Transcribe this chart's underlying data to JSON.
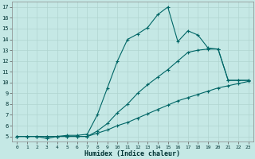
{
  "xlabel": "Humidex (Indice chaleur)",
  "bg_color": "#c5e8e5",
  "line_color": "#006666",
  "grid_color": "#b0d5d0",
  "xlim": [
    -0.5,
    23.5
  ],
  "ylim": [
    4.5,
    17.5
  ],
  "xticks": [
    0,
    1,
    2,
    3,
    4,
    5,
    6,
    7,
    8,
    9,
    10,
    11,
    12,
    13,
    14,
    15,
    16,
    17,
    18,
    19,
    20,
    21,
    22,
    23
  ],
  "yticks": [
    5,
    6,
    7,
    8,
    9,
    10,
    11,
    12,
    13,
    14,
    15,
    16,
    17
  ],
  "line1_x": [
    0,
    1,
    2,
    3,
    4,
    5,
    6,
    7,
    8,
    9,
    10,
    11,
    12,
    13,
    14,
    15,
    16,
    17,
    18,
    19,
    20,
    21,
    22,
    23
  ],
  "line1_y": [
    5,
    5,
    5,
    5,
    5,
    5,
    5,
    5,
    5.3,
    5.6,
    6.0,
    6.3,
    6.7,
    7.1,
    7.5,
    7.9,
    8.3,
    8.6,
    8.9,
    9.2,
    9.5,
    9.7,
    9.9,
    10.1
  ],
  "line2_x": [
    0,
    1,
    2,
    3,
    4,
    5,
    6,
    7,
    8,
    9,
    10,
    11,
    12,
    13,
    14,
    15,
    16,
    17,
    18,
    19,
    20,
    21,
    22,
    23
  ],
  "line2_y": [
    5,
    5,
    5,
    5,
    5,
    5,
    5,
    5,
    5.5,
    6.2,
    7.2,
    8.0,
    9.0,
    9.8,
    10.5,
    11.2,
    12.0,
    12.8,
    13.0,
    13.1,
    13.1,
    10.2,
    10.2,
    10.2
  ],
  "line3_x": [
    0,
    1,
    2,
    3,
    4,
    5,
    6,
    7,
    8,
    9,
    10,
    11,
    12,
    13,
    14,
    15,
    16,
    17,
    18,
    19,
    20,
    21,
    22,
    23
  ],
  "line3_y": [
    5,
    5,
    5,
    4.8,
    5.0,
    5.1,
    5.1,
    5.2,
    7.0,
    9.5,
    12.0,
    14.0,
    14.5,
    15.1,
    16.3,
    17.0,
    13.8,
    14.8,
    14.4,
    13.2,
    13.1,
    10.2,
    10.2,
    10.2
  ]
}
